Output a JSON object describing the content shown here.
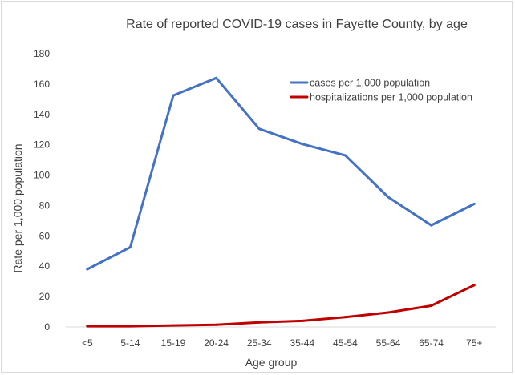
{
  "chart_data": {
    "type": "line",
    "title": "Rate of reported COVID-19 cases in Fayette County, by age",
    "xlabel": "Age group",
    "ylabel": "Rate per 1,000 population",
    "categories": [
      "<5",
      "5-14",
      "15-19",
      "20-24",
      "25-34",
      "35-44",
      "45-54",
      "55-64",
      "65-74",
      "75+"
    ],
    "ylim": [
      0,
      180
    ],
    "yticks": [
      0,
      20,
      40,
      60,
      80,
      100,
      120,
      140,
      160,
      180
    ],
    "grid": false,
    "legend_position": "top-right",
    "series": [
      {
        "name": "cases per 1,000 population",
        "color": "#4472C4",
        "values": [
          38,
          52.5,
          152.5,
          164,
          130.5,
          120.5,
          113,
          85.5,
          67,
          81
        ]
      },
      {
        "name": "hospitalizations per 1,000 population",
        "color": "#C00000",
        "values": [
          0.5,
          0.5,
          1,
          1.5,
          3,
          4,
          6.5,
          9.5,
          14,
          27.5
        ]
      }
    ]
  }
}
